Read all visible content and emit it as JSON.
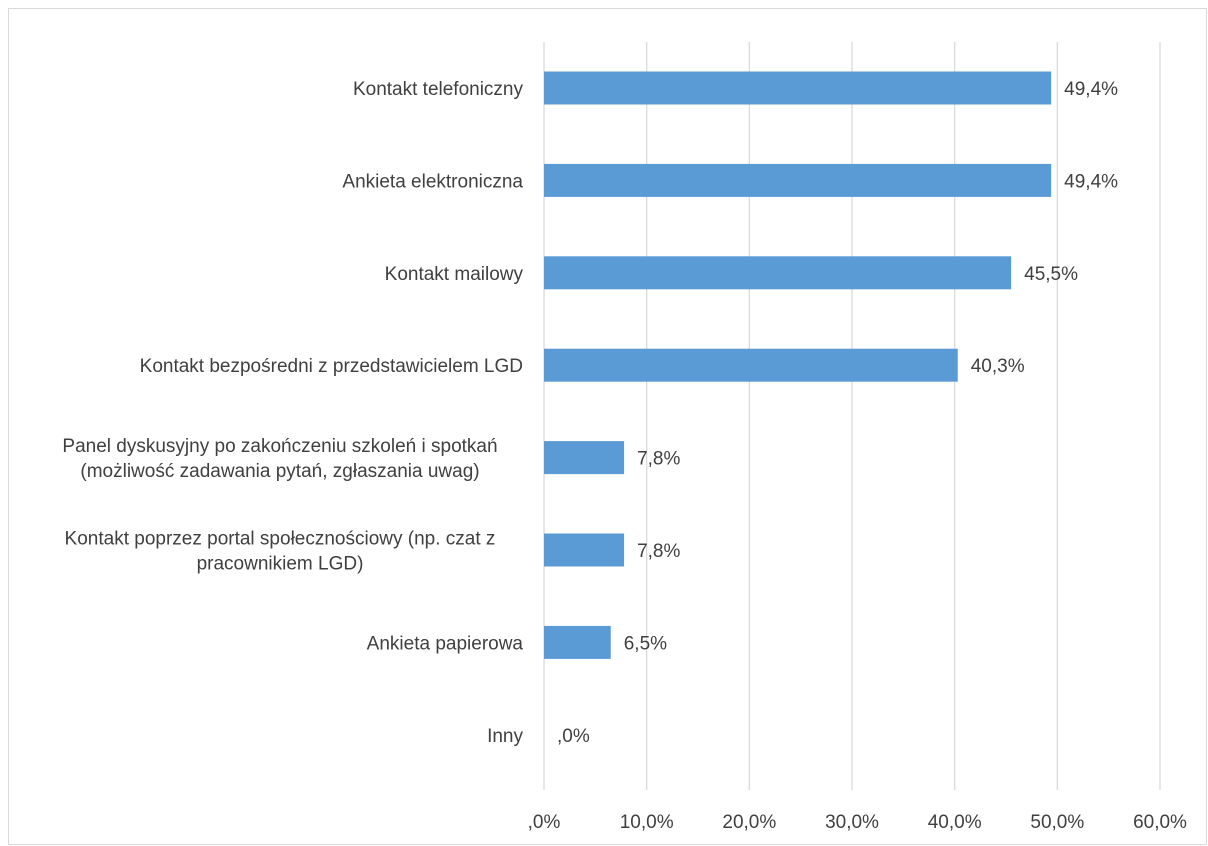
{
  "chart_data": {
    "type": "bar",
    "orientation": "horizontal",
    "categories": [
      [
        "Kontakt telefoniczny"
      ],
      [
        "Ankieta elektroniczna"
      ],
      [
        "Kontakt mailowy"
      ],
      [
        "Kontakt bezpośredni z przedstawicielem LGD"
      ],
      [
        "Panel dyskusyjny po zakończeniu szkoleń i spotkań",
        "(możliwość zadawania pytań, zgłaszania uwag)"
      ],
      [
        "Kontakt poprzez portal społecznościowy (np. czat z",
        "pracownikiem LGD)"
      ],
      [
        "Ankieta papierowa"
      ],
      [
        "Inny"
      ]
    ],
    "values": [
      49.4,
      49.4,
      45.5,
      40.3,
      7.8,
      7.8,
      6.5,
      0.0
    ],
    "value_labels": [
      "49,4%",
      "49,4%",
      "45,5%",
      "40,3%",
      "7,8%",
      "7,8%",
      "6,5%",
      ",0%"
    ],
    "xlim": [
      0,
      60
    ],
    "x_ticks": [
      0,
      10,
      20,
      30,
      40,
      50,
      60
    ],
    "x_tick_labels": [
      ",0%",
      "10,0%",
      "20,0%",
      "30,0%",
      "40,0%",
      "50,0%",
      "60,0%"
    ],
    "grid": true,
    "colors": {
      "bar": "#5b9bd5",
      "grid": "#d9d9d9",
      "text": "#404040"
    }
  }
}
